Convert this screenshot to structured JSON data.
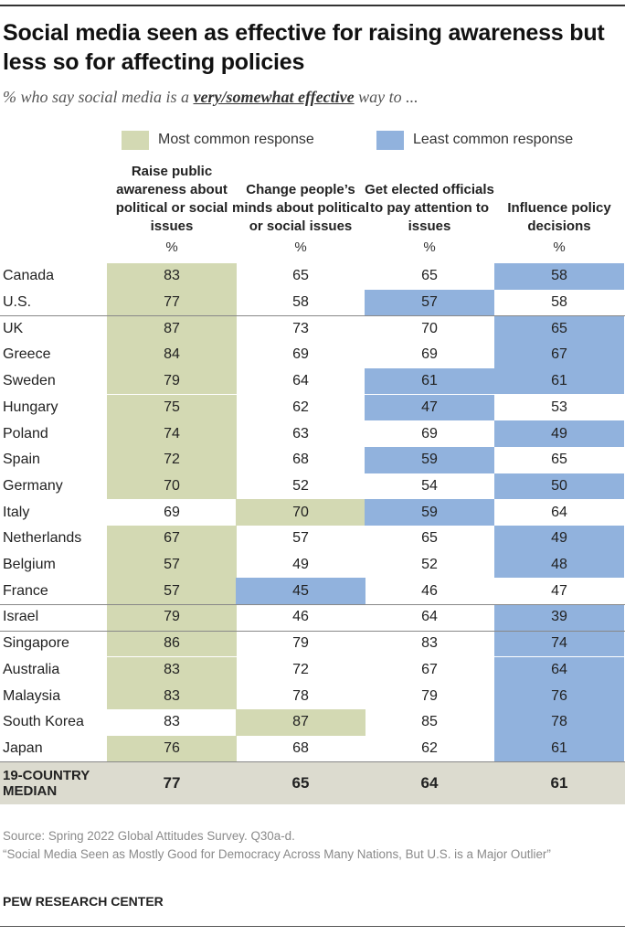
{
  "title": "Social media seen as effective for raising awareness but less so for affecting policies",
  "subtitle": {
    "prefix": "% who say social media is a ",
    "emphasis": "very/somewhat effective",
    "suffix": " way to ..."
  },
  "colors": {
    "most": "#d3d9b3",
    "least": "#91b2dd",
    "median_bg": "#dcdbcf"
  },
  "chart_data": {
    "type": "table",
    "legend": [
      {
        "key": "most",
        "label": "Most common response"
      },
      {
        "key": "least",
        "label": "Least common response"
      }
    ],
    "columns": [
      {
        "label": "Raise public awareness about political or social issues",
        "unit": "%"
      },
      {
        "label": "Change people’s minds about political or social issues",
        "unit": "%"
      },
      {
        "label": "Get elected officials to pay attention to issues",
        "unit": "%"
      },
      {
        "label": "Influence policy decisions",
        "unit": "%"
      }
    ],
    "rows": [
      {
        "country": "Canada",
        "values": [
          83,
          65,
          65,
          58
        ],
        "highlight": [
          "most",
          "",
          "",
          "least"
        ]
      },
      {
        "country": "U.S.",
        "values": [
          77,
          58,
          57,
          58
        ],
        "highlight": [
          "most",
          "",
          "least",
          ""
        ]
      },
      {
        "country": "UK",
        "values": [
          87,
          73,
          70,
          65
        ],
        "highlight": [
          "most",
          "",
          "",
          "least"
        ]
      },
      {
        "country": "Greece",
        "values": [
          84,
          69,
          69,
          67
        ],
        "highlight": [
          "most",
          "",
          "",
          "least"
        ]
      },
      {
        "country": "Sweden",
        "values": [
          79,
          64,
          61,
          61
        ],
        "highlight": [
          "most",
          "",
          "least",
          "least"
        ]
      },
      {
        "country": "Hungary",
        "values": [
          75,
          62,
          47,
          53
        ],
        "highlight": [
          "most",
          "",
          "least",
          ""
        ]
      },
      {
        "country": "Poland",
        "values": [
          74,
          63,
          69,
          49
        ],
        "highlight": [
          "most",
          "",
          "",
          "least"
        ]
      },
      {
        "country": "Spain",
        "values": [
          72,
          68,
          59,
          65
        ],
        "highlight": [
          "most",
          "",
          "least",
          ""
        ]
      },
      {
        "country": "Germany",
        "values": [
          70,
          52,
          54,
          50
        ],
        "highlight": [
          "most",
          "",
          "",
          "least"
        ]
      },
      {
        "country": "Italy",
        "values": [
          69,
          70,
          59,
          64
        ],
        "highlight": [
          "",
          "most",
          "least",
          ""
        ]
      },
      {
        "country": "Netherlands",
        "values": [
          67,
          57,
          65,
          49
        ],
        "highlight": [
          "most",
          "",
          "",
          "least"
        ]
      },
      {
        "country": "Belgium",
        "values": [
          57,
          49,
          52,
          48
        ],
        "highlight": [
          "most",
          "",
          "",
          "least"
        ]
      },
      {
        "country": "France",
        "values": [
          57,
          45,
          46,
          47
        ],
        "highlight": [
          "most",
          "least",
          "",
          ""
        ]
      },
      {
        "country": "Israel",
        "values": [
          79,
          46,
          64,
          39
        ],
        "highlight": [
          "most",
          "",
          "",
          "least"
        ]
      },
      {
        "country": "Singapore",
        "values": [
          86,
          79,
          83,
          74
        ],
        "highlight": [
          "most",
          "",
          "",
          "least"
        ]
      },
      {
        "country": "Australia",
        "values": [
          83,
          72,
          67,
          64
        ],
        "highlight": [
          "most",
          "",
          "",
          "least"
        ]
      },
      {
        "country": "Malaysia",
        "values": [
          83,
          78,
          79,
          76
        ],
        "highlight": [
          "most",
          "",
          "",
          "least"
        ]
      },
      {
        "country": "South Korea",
        "values": [
          83,
          87,
          85,
          78
        ],
        "highlight": [
          "",
          "most",
          "",
          "least"
        ]
      },
      {
        "country": "Japan",
        "values": [
          76,
          68,
          62,
          61
        ],
        "highlight": [
          "most",
          "",
          "",
          "least"
        ]
      }
    ],
    "median": {
      "label": "19-COUNTRY MEDIAN",
      "values": [
        77,
        65,
        64,
        61
      ]
    }
  },
  "footer": {
    "source": "Source: Spring 2022 Global Attitudes Survey. Q30a-d.",
    "report": "“Social Media Seen as Mostly Good for Democracy Across Many Nations, But U.S. is a Major Outlier”",
    "brand": "PEW RESEARCH CENTER"
  }
}
